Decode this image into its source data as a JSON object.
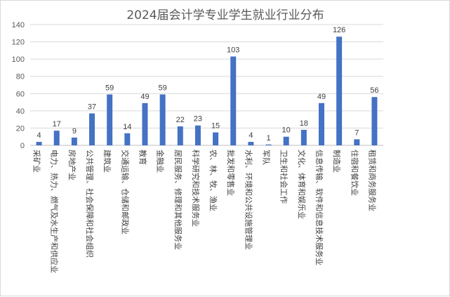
{
  "chart_data": {
    "type": "bar",
    "title": "2024届会计学专业学生就业行业分布",
    "xlabel": "",
    "ylabel": "",
    "ylim": [
      0,
      140
    ],
    "yticks": [
      0,
      20,
      40,
      60,
      80,
      100,
      120,
      140
    ],
    "grid": true,
    "legend": "none",
    "bar_color": "#4472c4",
    "categories": [
      "采矿业",
      "电力、热力、燃气及水生产和供应业",
      "房地产业",
      "公共管理、社会保障和社会组织",
      "建筑业",
      "交通运输、仓储和邮政业",
      "教育",
      "金融业",
      "居民服务、修理和其他服务业",
      "科学研究和技术服务业",
      "农、林、牧、渔业",
      "批发和零售业",
      "水利、环境和公共设施管理业",
      "军队",
      "卫生和社会工作",
      "文化、体育和娱乐业",
      "信息传输、软件和信息技术服务业",
      "制造业",
      "住宿和餐饮业",
      "租赁和商务服务业"
    ],
    "values": [
      4,
      17,
      9,
      37,
      59,
      14,
      49,
      59,
      22,
      23,
      15,
      103,
      4,
      1,
      10,
      18,
      49,
      126,
      7,
      56
    ]
  }
}
